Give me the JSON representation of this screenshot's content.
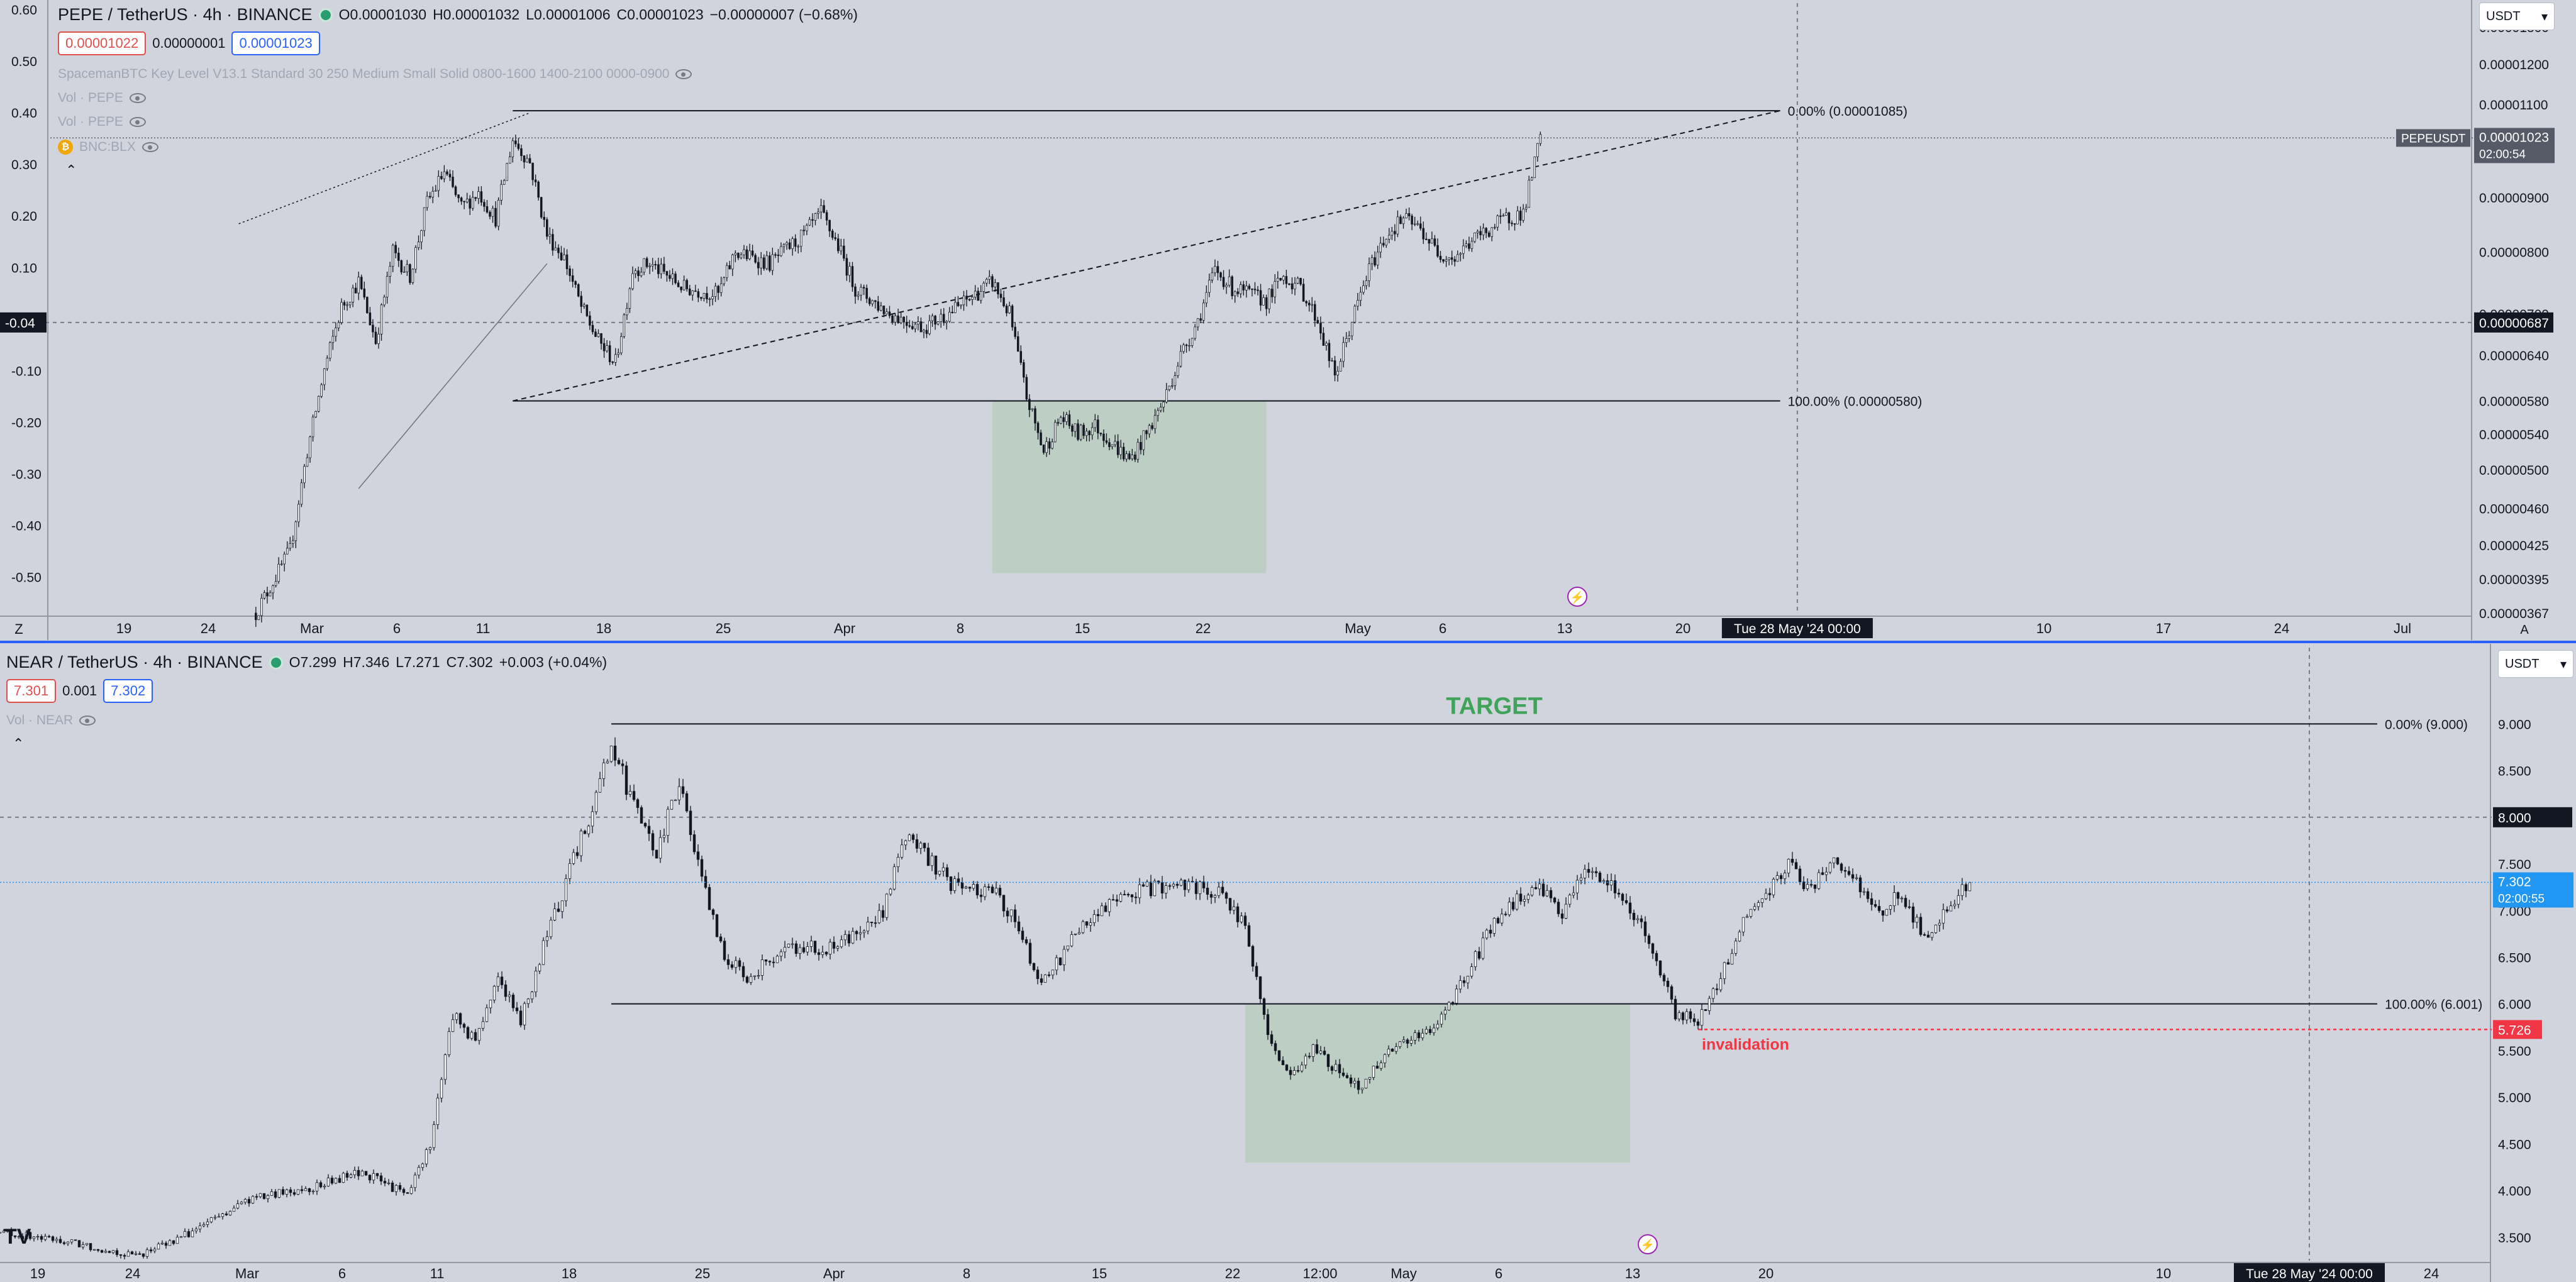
{
  "top_panel": {
    "symbol": "PEPE / TetherUS · 4h · BINANCE",
    "ohlc": [
      {
        "k": "O",
        "v": "0.00001030"
      },
      {
        "k": "H",
        "v": "0.00001032"
      },
      {
        "k": "L",
        "v": "0.00001006"
      },
      {
        "k": "C",
        "v": "0.00001023"
      },
      {
        "k": "",
        "v": "−0.00000007 (−0.68%)"
      }
    ],
    "bid": "0.00001022",
    "spread": "0.00000001",
    "ask": "0.00001023",
    "indicators": [
      "SpacemanBTC Key Level V13.1 Standard 30 250 Medium Small Solid 0800-1600 1400-2100 0000-0900",
      "Vol · PEPE",
      "Vol · PEPE",
      "BNC:BLX"
    ],
    "currency": "USDT",
    "status_icon": "lightning-icon"
  },
  "bottom_panel": {
    "symbol": "NEAR / TetherUS · 4h · BINANCE",
    "ohlc": [
      {
        "k": "O",
        "v": "7.299"
      },
      {
        "k": "H",
        "v": "7.346"
      },
      {
        "k": "L",
        "v": "7.271"
      },
      {
        "k": "C",
        "v": "7.302"
      },
      {
        "k": "",
        "v": "+0.003 (+0.04%)"
      }
    ],
    "bid": "7.301",
    "spread": "0.001",
    "ask": "7.302",
    "indicators": [
      "Vol · NEAR"
    ],
    "currency": "USDT",
    "status_icon": "lightning-icon"
  },
  "chart_data": [
    {
      "type": "candlestick",
      "symbol": "PEPE / TetherUS",
      "interval": "4h",
      "exchange": "BINANCE",
      "y_axis_right": {
        "ticks": [
          "0.00001300",
          "0.00001200",
          "0.00001100",
          "0.00001000",
          "0.00000900",
          "0.00000800",
          "0.00000700",
          "0.00000640",
          "0.00000580",
          "0.00000540",
          "0.00000500",
          "0.00000460",
          "0.00000425",
          "0.00000395",
          "0.00000367"
        ],
        "ylim": [
          3.67e-06,
          1.35e-05
        ],
        "scale": "log"
      },
      "y_axis_left": {
        "ticks": [
          "0.60",
          "0.50",
          "0.40",
          "0.30",
          "0.20",
          "0.10",
          "0.00",
          "-0.10",
          "-0.20",
          "-0.30",
          "-0.40",
          "-0.50"
        ],
        "ylim": [
          -0.57,
          0.6
        ]
      },
      "x_ticks": [
        "19",
        "24",
        "Mar",
        "6",
        "11",
        "18",
        "25",
        "Apr",
        "8",
        "15",
        "22",
        "May",
        "6",
        "13",
        "20",
        "10",
        "17",
        "24",
        "Jul"
      ],
      "x_range": [
        "2024-02-16",
        "2024-07-06"
      ],
      "series_path": [
        [
          "2024-02-28",
          3.67e-06
        ],
        [
          "2024-03-01",
          4.2e-06
        ],
        [
          "2024-03-02",
          5.2e-06
        ],
        [
          "2024-03-03",
          6.2e-06
        ],
        [
          "2024-03-04",
          7.1e-06
        ],
        [
          "2024-03-05",
          7.5e-06
        ],
        [
          "2024-03-06",
          6.6e-06
        ],
        [
          "2024-03-07",
          8e-06
        ],
        [
          "2024-03-08",
          7.6e-06
        ],
        [
          "2024-03-09",
          8.9e-06
        ],
        [
          "2024-03-10",
          9.5e-06
        ],
        [
          "2024-03-11",
          8.8e-06
        ],
        [
          "2024-03-12",
          9.1e-06
        ],
        [
          "2024-03-13",
          8.6e-06
        ],
        [
          "2024-03-14",
          1.02e-05
        ],
        [
          "2024-03-15",
          9.7e-06
        ],
        [
          "2024-03-16",
          8.3e-06
        ],
        [
          "2024-03-17",
          7.9e-06
        ],
        [
          "2024-03-18",
          7.1e-06
        ],
        [
          "2024-03-19",
          6.6e-06
        ],
        [
          "2024-03-20",
          6.3e-06
        ],
        [
          "2024-03-21",
          7.7e-06
        ],
        [
          "2024-03-22",
          7.8e-06
        ],
        [
          "2024-03-24",
          7.4e-06
        ],
        [
          "2024-03-26",
          7.3e-06
        ],
        [
          "2024-03-27",
          8e-06
        ],
        [
          "2024-03-29",
          7.8e-06
        ],
        [
          "2024-03-31",
          8.3e-06
        ],
        [
          "2024-04-01",
          8.7e-06
        ],
        [
          "2024-04-02",
          8.1e-06
        ],
        [
          "2024-04-03",
          7.4e-06
        ],
        [
          "2024-04-05",
          7e-06
        ],
        [
          "2024-04-07",
          6.8e-06
        ],
        [
          "2024-04-09",
          7.1e-06
        ],
        [
          "2024-04-10",
          7.3e-06
        ],
        [
          "2024-04-11",
          7.5e-06
        ],
        [
          "2024-04-12",
          7e-06
        ],
        [
          "2024-04-13",
          5.85e-06
        ],
        [
          "2024-04-14",
          5.2e-06
        ],
        [
          "2024-04-15",
          5.6e-06
        ],
        [
          "2024-04-16",
          5.4e-06
        ],
        [
          "2024-04-17",
          5.5e-06
        ],
        [
          "2024-04-18",
          5.3e-06
        ],
        [
          "2024-04-19",
          5.1e-06
        ],
        [
          "2024-04-20",
          5.4e-06
        ],
        [
          "2024-04-21",
          5.8e-06
        ],
        [
          "2024-04-22",
          6.4e-06
        ],
        [
          "2024-04-23",
          6.9e-06
        ],
        [
          "2024-04-24",
          7.7e-06
        ],
        [
          "2024-04-25",
          7.4e-06
        ],
        [
          "2024-04-27",
          7.2e-06
        ],
        [
          "2024-04-28",
          7.6e-06
        ],
        [
          "2024-04-29",
          7.4e-06
        ],
        [
          "2024-04-30",
          6.9e-06
        ],
        [
          "2024-05-01",
          6.1e-06
        ],
        [
          "2024-05-02",
          6.9e-06
        ],
        [
          "2024-05-03",
          7.7e-06
        ],
        [
          "2024-05-04",
          8.3e-06
        ],
        [
          "2024-05-05",
          8.6e-06
        ],
        [
          "2024-05-06",
          8.4e-06
        ],
        [
          "2024-05-07",
          8e-06
        ],
        [
          "2024-05-08",
          7.9e-06
        ],
        [
          "2024-05-09",
          8.2e-06
        ],
        [
          "2024-05-10",
          8.4e-06
        ],
        [
          "2024-05-11",
          8.6e-06
        ],
        [
          "2024-05-12",
          8.7e-06
        ],
        [
          "2024-05-13",
          1.023e-05
        ]
      ],
      "annotations": {
        "fib_top": {
          "label": "0.00% (0.00001085)",
          "value": 1.085e-05,
          "from": "2024-03-14",
          "to": "2024-05-27"
        },
        "fib_bottom": {
          "label": "100.00% (0.00000580)",
          "value": 5.8e-06,
          "from": "2024-03-14",
          "to": "2024-05-27"
        },
        "rising_trendline": {
          "from": [
            "2024-03-14",
            5.8e-06
          ],
          "to": [
            "2024-05-27",
            1.085e-05
          ]
        },
        "accumulation_zone": {
          "x": [
            "2024-04-11",
            "2024-04-27"
          ],
          "y": [
            4e-06,
            5.8e-06
          ]
        },
        "crosshair_date": "Tue 28 May '24   00:00",
        "crosshair_price": "0.00000687",
        "crosshair_left_value": "-0.04",
        "last_price": {
          "symbol_tag": "PEPEUSDT",
          "price": "0.00001023",
          "countdown": "02:00:54"
        }
      }
    },
    {
      "type": "candlestick",
      "symbol": "NEAR / TetherUS",
      "interval": "4h",
      "exchange": "BINANCE",
      "y_axis_right": {
        "ticks": [
          "9.000",
          "8.500",
          "8.000",
          "7.500",
          "7.000",
          "6.500",
          "6.000",
          "5.500",
          "5.000",
          "4.500",
          "4.000",
          "3.500"
        ],
        "ylim": [
          3.25,
          9.75
        ]
      },
      "x_ticks": [
        "19",
        "24",
        "Mar",
        "6",
        "11",
        "18",
        "25",
        "Apr",
        "8",
        "15",
        "22",
        "12:00",
        "May",
        "6",
        "13",
        "20",
        "10",
        "17",
        "24"
      ],
      "x_range": [
        "2024-02-16",
        "2024-06-05"
      ],
      "series_path": [
        [
          "2024-02-16",
          3.55
        ],
        [
          "2024-02-19",
          3.45
        ],
        [
          "2024-02-22",
          3.3
        ],
        [
          "2024-02-24",
          3.5
        ],
        [
          "2024-02-27",
          3.9
        ],
        [
          "2024-03-01",
          4.05
        ],
        [
          "2024-03-03",
          4.2
        ],
        [
          "2024-03-05",
          3.95
        ],
        [
          "2024-03-06",
          4.5
        ],
        [
          "2024-03-07",
          5.9
        ],
        [
          "2024-03-08",
          5.6
        ],
        [
          "2024-03-09",
          6.3
        ],
        [
          "2024-03-10",
          5.8
        ],
        [
          "2024-03-11",
          6.6
        ],
        [
          "2024-03-12",
          7.3
        ],
        [
          "2024-03-13",
          8.0
        ],
        [
          "2024-03-14",
          8.8
        ],
        [
          "2024-03-15",
          8.1
        ],
        [
          "2024-03-16",
          7.6
        ],
        [
          "2024-03-17",
          8.4
        ],
        [
          "2024-03-18",
          7.3
        ],
        [
          "2024-03-19",
          6.5
        ],
        [
          "2024-03-20",
          6.3
        ],
        [
          "2024-03-22",
          6.6
        ],
        [
          "2024-03-24",
          6.6
        ],
        [
          "2024-03-26",
          7.0
        ],
        [
          "2024-03-27",
          7.8
        ],
        [
          "2024-03-29",
          7.3
        ],
        [
          "2024-03-31",
          7.2
        ],
        [
          "2024-04-01",
          6.8
        ],
        [
          "2024-04-02",
          6.2
        ],
        [
          "2024-04-04",
          6.9
        ],
        [
          "2024-04-06",
          7.2
        ],
        [
          "2024-04-08",
          7.3
        ],
        [
          "2024-04-10",
          7.2
        ],
        [
          "2024-04-11",
          6.8
        ],
        [
          "2024-04-12",
          5.7
        ],
        [
          "2024-04-13",
          5.2
        ],
        [
          "2024-04-14",
          5.5
        ],
        [
          "2024-04-15",
          5.3
        ],
        [
          "2024-04-16",
          5.1
        ],
        [
          "2024-04-17",
          5.4
        ],
        [
          "2024-04-18",
          5.6
        ],
        [
          "2024-04-19",
          5.7
        ],
        [
          "2024-04-20",
          6.0
        ],
        [
          "2024-04-21",
          6.4
        ],
        [
          "2024-04-22",
          6.9
        ],
        [
          "2024-04-23",
          7.1
        ],
        [
          "2024-04-24",
          7.2
        ],
        [
          "2024-04-25",
          7.0
        ],
        [
          "2024-04-26",
          7.4
        ],
        [
          "2024-04-27",
          7.3
        ],
        [
          "2024-04-28",
          7.0
        ],
        [
          "2024-04-29",
          6.6
        ],
        [
          "2024-04-30",
          5.9
        ],
        [
          "2024-05-01",
          5.8
        ],
        [
          "2024-05-02",
          6.3
        ],
        [
          "2024-05-03",
          6.9
        ],
        [
          "2024-05-04",
          7.2
        ],
        [
          "2024-05-05",
          7.5
        ],
        [
          "2024-05-06",
          7.2
        ],
        [
          "2024-05-07",
          7.6
        ],
        [
          "2024-05-08",
          7.3
        ],
        [
          "2024-05-09",
          7.0
        ],
        [
          "2024-05-10",
          7.2
        ],
        [
          "2024-05-11",
          6.7
        ],
        [
          "2024-05-12",
          7.0
        ],
        [
          "2024-05-13",
          7.302
        ]
      ],
      "annotations": {
        "title_label": "TARGET",
        "fib_top": {
          "label": "0.00% (9.000)",
          "value": 9.0,
          "from": "2024-03-14",
          "to": "2024-05-31"
        },
        "fib_bottom": {
          "label": "100.00% (6.001)",
          "value": 6.001,
          "from": "2024-03-14",
          "to": "2024-05-31"
        },
        "invalidation": {
          "label": "invalidation",
          "value": 5.726,
          "from": "2024-05-01"
        },
        "accumulation_zone": {
          "x": [
            "2024-04-11",
            "2024-04-28"
          ],
          "y": [
            4.3,
            6.0
          ]
        },
        "crosshair_date": "Tue 28 May '24   00:00",
        "crosshair_price": "8.000",
        "last_price": {
          "price": "7.302",
          "countdown": "02:00:55"
        }
      }
    }
  ]
}
